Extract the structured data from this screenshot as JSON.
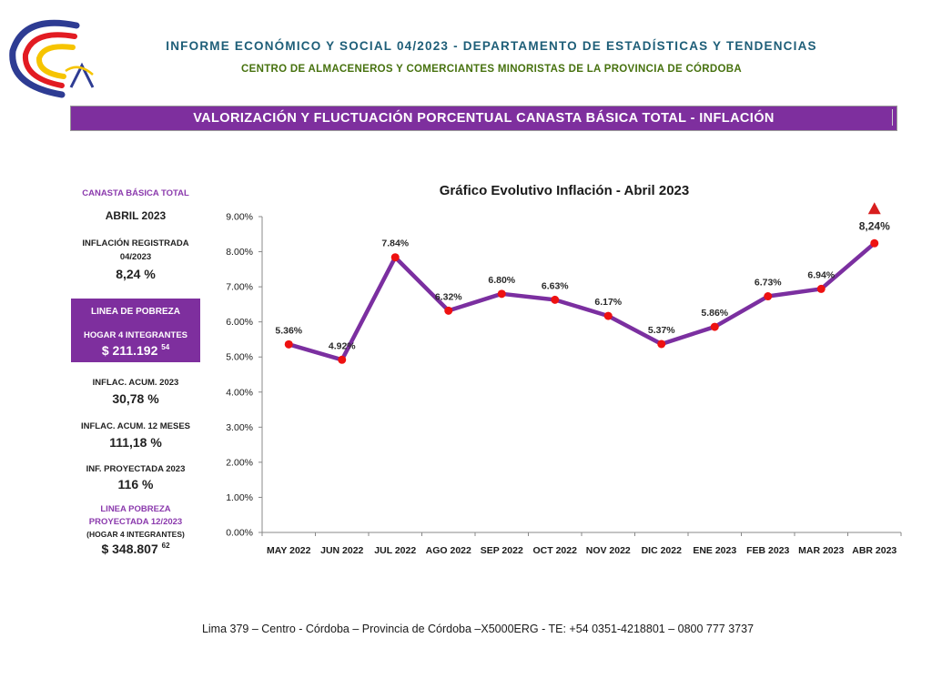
{
  "header": {
    "title": "INFORME ECONÓMICO Y SOCIAL 04/2023 - DEPARTAMENTO DE ESTADÍSTICAS Y TENDENCIAS",
    "subtitle": "CENTRO DE ALMACENEROS Y COMERCIANTES MINORISTAS DE LA PROVINCIA DE CÓRDOBA"
  },
  "banner": "VALORIZACIÓN Y FLUCTUACIÓN PORCENTUAL CANASTA BÁSICA TOTAL - INFLACIÓN",
  "sidebar": {
    "cbt_label": "CANASTA BÁSICA TOTAL",
    "month": "ABRIL 2023",
    "inflation_label_1": "INFLACIÓN REGISTRADA",
    "inflation_label_2": "04/2023",
    "inflation_value": "8,24 %",
    "poverty_title": "LINEA DE POBREZA",
    "poverty_household": "HOGAR 4 INTEGRANTES",
    "poverty_value": "$ 211.192",
    "poverty_cents": "54",
    "acum_2023_label": "INFLAC. ACUM. 2023",
    "acum_2023_value": "30,78 %",
    "acum_12_label": "INFLAC. ACUM. 12 MESES",
    "acum_12_value": "111,18 %",
    "proj_label": "INF. PROYECTADA 2023",
    "proj_value": "116 %",
    "proj_pov_label_1": "LINEA POBREZA",
    "proj_pov_label_2": "PROYECTADA 12/2023",
    "proj_pov_household": "(HOGAR 4 INTEGRANTES)",
    "proj_pov_value": "$ 348.807",
    "proj_pov_cents": "62"
  },
  "chart_data": {
    "type": "line",
    "title": "Gráfico Evolutivo Inflación - Abril 2023",
    "xlabel": "",
    "ylabel": "",
    "ylim": [
      0,
      9
    ],
    "y_ticks": [
      "0.00%",
      "1.00%",
      "2.00%",
      "3.00%",
      "4.00%",
      "5.00%",
      "6.00%",
      "7.00%",
      "8.00%",
      "9.00%"
    ],
    "categories": [
      "MAY 2022",
      "JUN 2022",
      "JUL 2022",
      "AGO 2022",
      "SEP 2022",
      "OCT 2022",
      "NOV 2022",
      "DIC 2022",
      "ENE 2023",
      "FEB 2023",
      "MAR 2023",
      "ABR 2023"
    ],
    "values": [
      5.36,
      4.92,
      7.84,
      6.32,
      6.8,
      6.63,
      6.17,
      5.37,
      5.86,
      6.73,
      6.94,
      8.24
    ],
    "data_labels": [
      "5.36%",
      "4.92%",
      "7.84%",
      "6.32%",
      "6.80%",
      "6.63%",
      "6.17%",
      "5.37%",
      "5.86%",
      "6.73%",
      "6.94%",
      "8,24%"
    ],
    "grid": false,
    "legend": "none",
    "line_color": "#7b2fa0",
    "marker_color": "#ee1111",
    "indicator_color": "#d81e1e"
  },
  "footer": "Lima 379 – Centro - Córdoba – Provincia de Córdoba –X5000ERG - TE: +54 0351-4218801 – 0800 777 3737"
}
